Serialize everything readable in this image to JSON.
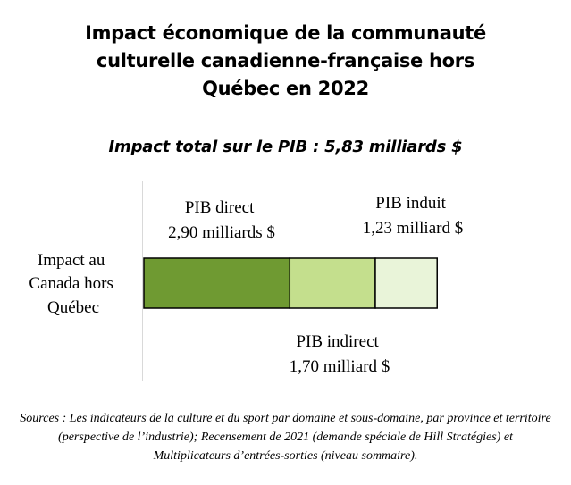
{
  "title_lines": [
    "Impact économique de la communauté",
    "culturelle canadienne-française hors",
    "Québec en 2022"
  ],
  "subtitle": "Impact total sur le PIB : 5,83 milliards $",
  "chart_data": {
    "type": "bar",
    "orientation": "horizontal",
    "stacked": true,
    "categories": [
      "Impact au Canada hors Québec"
    ],
    "category_label_lines": [
      "Impact au",
      "Canada hors",
      "Québec"
    ],
    "unit": "milliards $",
    "series": [
      {
        "name": "PIB direct",
        "values": [
          2.9
        ],
        "value_label": "2,90 milliards $",
        "color": "#6f9a32"
      },
      {
        "name": "PIB indirect",
        "values": [
          1.7
        ],
        "value_label": "1,70 milliard $",
        "color": "#c4df8d"
      },
      {
        "name": "PIB induit",
        "values": [
          1.23
        ],
        "value_label": "1,23 milliard $",
        "color": "#e9f4d9"
      }
    ],
    "total": 5.83,
    "xlim": [
      0,
      5.83
    ],
    "grid": false,
    "legend": "none"
  },
  "sources": "Sources : Les indicateurs de la culture et du sport par domaine et sous-domaine, par province et territoire (perspective de l’industrie); Recensement de 2021 (demande spéciale de Hill Stratégies) et Multiplicateurs d’entrées-sorties (niveau sommaire)."
}
